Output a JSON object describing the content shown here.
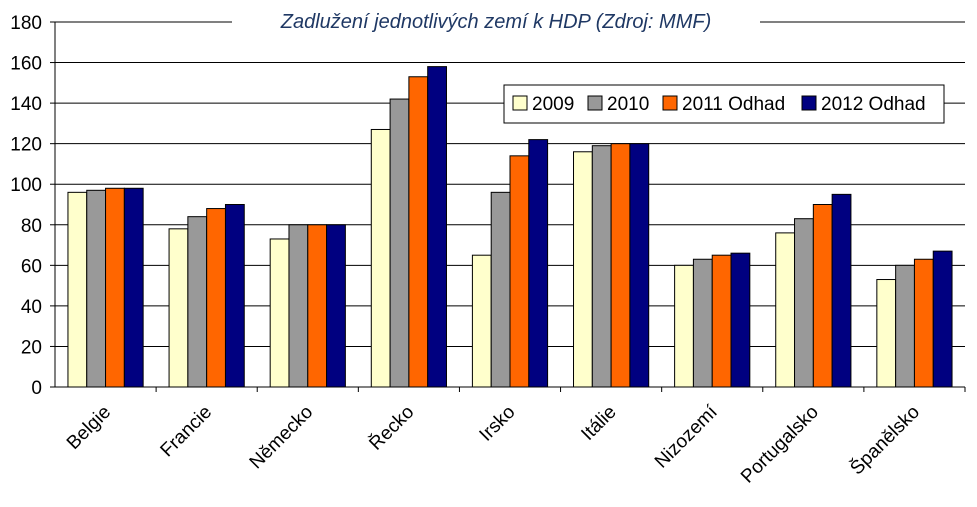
{
  "chart_data": {
    "type": "bar",
    "title": "Zadlužení jednotlivých zemí k HDP (Zdroj: MMF)",
    "categories": [
      "Belgie",
      "Francie",
      "Německo",
      "Řecko",
      "Irsko",
      "Itálie",
      "Nizozemí",
      "Portugalsko",
      "Španělsko"
    ],
    "series": [
      {
        "name": "2009",
        "color": "#ffffcc",
        "values": [
          96,
          78,
          73,
          127,
          65,
          116,
          60,
          76,
          53
        ]
      },
      {
        "name": "2010",
        "color": "#999999",
        "values": [
          97,
          84,
          80,
          142,
          96,
          119,
          63,
          83,
          60
        ]
      },
      {
        "name": "2011 Odhad",
        "color": "#ff6600",
        "values": [
          98,
          88,
          80,
          153,
          114,
          120,
          65,
          90,
          63
        ]
      },
      {
        "name": "2012 Odhad",
        "color": "#000080",
        "values": [
          98,
          90,
          80,
          158,
          122,
          120,
          66,
          95,
          67
        ]
      }
    ],
    "ylim": [
      0,
      180
    ],
    "yticks": [
      "0",
      "20",
      "40",
      "60",
      "80",
      "100",
      "120",
      "140",
      "160",
      "180"
    ],
    "xlabel": "",
    "ylabel": "",
    "grid": true,
    "legend_position": "top-right"
  }
}
